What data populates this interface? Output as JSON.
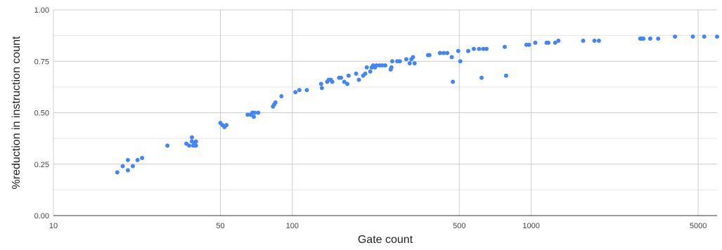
{
  "chart_data": {
    "type": "scatter",
    "title": "",
    "xlabel": "Gate count",
    "ylabel": "%reduction in instruction count",
    "x_scale": "log",
    "xlim": [
      10,
      6000
    ],
    "ylim": [
      0,
      1
    ],
    "x_ticks": [
      {
        "value": 10,
        "label": "10"
      },
      {
        "value": 50,
        "label": "50"
      },
      {
        "value": 100,
        "label": "100"
      },
      {
        "value": 500,
        "label": "500"
      },
      {
        "value": 1000,
        "label": "1000"
      },
      {
        "value": 5000,
        "label": "5000"
      }
    ],
    "y_ticks": [
      {
        "value": 0,
        "label": "0.00"
      },
      {
        "value": 0.25,
        "label": "0.25"
      },
      {
        "value": 0.5,
        "label": "0.50"
      },
      {
        "value": 0.75,
        "label": "0.75"
      },
      {
        "value": 1,
        "label": "1.00"
      }
    ],
    "grid": true,
    "legend": "none",
    "colors": {
      "points": "#4285F4",
      "major_grid": "#cccccc",
      "minor_grid": "#e6e6e6",
      "baseline": "#333333"
    },
    "series": [
      {
        "points": [
          [
            18.5,
            0.21
          ],
          [
            19.5,
            0.24
          ],
          [
            20.5,
            0.27
          ],
          [
            20.5,
            0.22
          ],
          [
            21.5,
            0.24
          ],
          [
            22.5,
            0.27
          ],
          [
            23.5,
            0.28
          ],
          [
            30,
            0.34
          ],
          [
            36,
            0.35
          ],
          [
            37,
            0.34
          ],
          [
            38,
            0.38
          ],
          [
            38,
            0.36
          ],
          [
            38.5,
            0.34
          ],
          [
            39,
            0.35
          ],
          [
            39.5,
            0.34
          ],
          [
            39.5,
            0.36
          ],
          [
            50,
            0.45
          ],
          [
            51,
            0.44
          ],
          [
            52,
            0.43
          ],
          [
            53,
            0.44
          ],
          [
            65,
            0.49
          ],
          [
            67,
            0.49
          ],
          [
            68,
            0.5
          ],
          [
            69,
            0.48
          ],
          [
            69.5,
            0.5
          ],
          [
            72,
            0.5
          ],
          [
            83,
            0.53
          ],
          [
            84,
            0.54
          ],
          [
            85,
            0.55
          ],
          [
            90,
            0.58
          ],
          [
            103,
            0.6
          ],
          [
            107,
            0.61
          ],
          [
            115,
            0.61
          ],
          [
            132,
            0.64
          ],
          [
            133,
            0.62
          ],
          [
            140,
            0.65
          ],
          [
            142,
            0.66
          ],
          [
            145,
            0.66
          ],
          [
            147,
            0.65
          ],
          [
            157,
            0.67
          ],
          [
            160,
            0.67
          ],
          [
            165,
            0.65
          ],
          [
            170,
            0.64
          ],
          [
            172,
            0.68
          ],
          [
            185,
            0.69
          ],
          [
            190,
            0.66
          ],
          [
            198,
            0.68
          ],
          [
            202,
            0.69
          ],
          [
            205,
            0.72
          ],
          [
            212,
            0.7
          ],
          [
            215,
            0.72
          ],
          [
            218,
            0.73
          ],
          [
            222,
            0.72
          ],
          [
            225,
            0.73
          ],
          [
            232,
            0.73
          ],
          [
            238,
            0.73
          ],
          [
            245,
            0.73
          ],
          [
            258,
            0.71
          ],
          [
            260,
            0.72
          ],
          [
            262,
            0.75
          ],
          [
            275,
            0.75
          ],
          [
            282,
            0.75
          ],
          [
            300,
            0.76
          ],
          [
            310,
            0.74
          ],
          [
            315,
            0.76
          ],
          [
            320,
            0.77
          ],
          [
            325,
            0.74
          ],
          [
            370,
            0.78
          ],
          [
            375,
            0.78
          ],
          [
            415,
            0.79
          ],
          [
            430,
            0.79
          ],
          [
            445,
            0.79
          ],
          [
            465,
            0.77
          ],
          [
            470,
            0.65
          ],
          [
            495,
            0.8
          ],
          [
            505,
            0.75
          ],
          [
            545,
            0.8
          ],
          [
            575,
            0.81
          ],
          [
            605,
            0.81
          ],
          [
            620,
            0.67
          ],
          [
            630,
            0.81
          ],
          [
            650,
            0.81
          ],
          [
            775,
            0.82
          ],
          [
            785,
            0.68
          ],
          [
            955,
            0.83
          ],
          [
            980,
            0.83
          ],
          [
            1040,
            0.84
          ],
          [
            1160,
            0.84
          ],
          [
            1180,
            0.84
          ],
          [
            1260,
            0.84
          ],
          [
            1300,
            0.85
          ],
          [
            1650,
            0.85
          ],
          [
            1840,
            0.85
          ],
          [
            1920,
            0.85
          ],
          [
            2860,
            0.86
          ],
          [
            2900,
            0.86
          ],
          [
            2950,
            0.86
          ],
          [
            3150,
            0.86
          ],
          [
            3400,
            0.86
          ],
          [
            4000,
            0.87
          ],
          [
            4750,
            0.87
          ],
          [
            5300,
            0.87
          ],
          [
            6000,
            0.87
          ]
        ]
      }
    ]
  }
}
